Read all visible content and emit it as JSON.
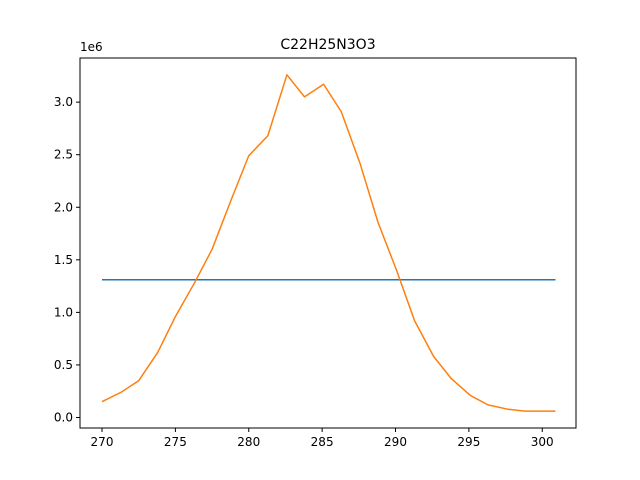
{
  "chart_data": {
    "type": "line",
    "title": "C22H25N3O3",
    "xlabel": "",
    "ylabel": "",
    "y_offset_label": "1e6",
    "xlim": [
      268.5,
      302.3
    ],
    "ylim": [
      -100000.0,
      3420000.0
    ],
    "x_ticks": [
      270,
      275,
      280,
      285,
      290,
      295,
      300
    ],
    "y_ticks": [
      0.0,
      0.5,
      1.0,
      1.5,
      2.0,
      2.5,
      3.0
    ],
    "y_tick_labels": [
      "0.0",
      "0.5",
      "1.0",
      "1.5",
      "2.0",
      "2.5",
      "3.0"
    ],
    "grid": false,
    "series": [
      {
        "color": "#1f77b4",
        "x": [
          270.0,
          300.9
        ],
        "y": [
          1310000,
          1310000
        ]
      },
      {
        "color": "#ff7f0e",
        "x": [
          270.0,
          271.3,
          272.5,
          273.8,
          275.0,
          276.3,
          277.5,
          278.8,
          280.0,
          281.3,
          282.6,
          283.8,
          285.1,
          286.3,
          287.6,
          288.8,
          290.1,
          291.3,
          292.6,
          293.8,
          295.1,
          296.3,
          297.6,
          298.8,
          300.1,
          300.9
        ],
        "y": [
          150000,
          240000,
          350000,
          620000,
          960000,
          1280000,
          1600000,
          2070000,
          2490000,
          2680000,
          3260000,
          3050000,
          3170000,
          2910000,
          2410000,
          1860000,
          1390000,
          920000,
          580000,
          370000,
          210000,
          120000,
          80000,
          60000,
          60000,
          60000
        ]
      }
    ]
  }
}
